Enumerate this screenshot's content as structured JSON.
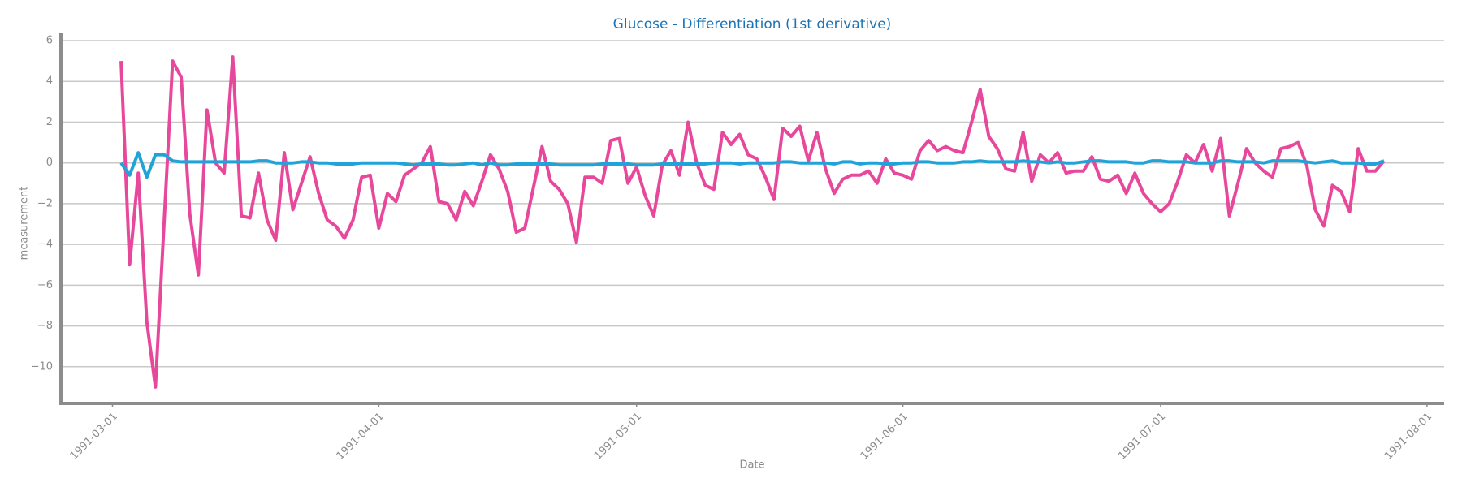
{
  "chart_data": {
    "type": "line",
    "title": "Glucose - Differentiation (1st derivative)",
    "x_label": "Date",
    "y_label": "measurement",
    "x": [
      "1991-03-02",
      "1991-03-03",
      "1991-03-04",
      "1991-03-05",
      "1991-03-06",
      "1991-03-07",
      "1991-03-08",
      "1991-03-09",
      "1991-03-10",
      "1991-03-11",
      "1991-03-12",
      "1991-03-13",
      "1991-03-14",
      "1991-03-15",
      "1991-03-16",
      "1991-03-17",
      "1991-03-18",
      "1991-03-19",
      "1991-03-20",
      "1991-03-21",
      "1991-03-22",
      "1991-03-23",
      "1991-03-24",
      "1991-03-25",
      "1991-03-26",
      "1991-03-27",
      "1991-03-28",
      "1991-03-29",
      "1991-03-30",
      "1991-03-31",
      "1991-04-01",
      "1991-04-02",
      "1991-04-03",
      "1991-04-04",
      "1991-04-05",
      "1991-04-06",
      "1991-04-07",
      "1991-04-08",
      "1991-04-09",
      "1991-04-10",
      "1991-04-11",
      "1991-04-12",
      "1991-04-13",
      "1991-04-14",
      "1991-04-15",
      "1991-04-16",
      "1991-04-17",
      "1991-04-18",
      "1991-04-19",
      "1991-04-20",
      "1991-04-21",
      "1991-04-22",
      "1991-04-23",
      "1991-04-24",
      "1991-04-25",
      "1991-04-26",
      "1991-04-27",
      "1991-04-28",
      "1991-04-29",
      "1991-04-30",
      "1991-05-01",
      "1991-05-02",
      "1991-05-03",
      "1991-05-04",
      "1991-05-05",
      "1991-05-06",
      "1991-05-07",
      "1991-05-08",
      "1991-05-09",
      "1991-05-10",
      "1991-05-11",
      "1991-05-12",
      "1991-05-13",
      "1991-05-14",
      "1991-05-15",
      "1991-05-16",
      "1991-05-17",
      "1991-05-18",
      "1991-05-19",
      "1991-05-20",
      "1991-05-21",
      "1991-05-22",
      "1991-05-23",
      "1991-05-24",
      "1991-05-25",
      "1991-05-26",
      "1991-05-27",
      "1991-05-28",
      "1991-05-29",
      "1991-05-30",
      "1991-05-31",
      "1991-06-01",
      "1991-06-02",
      "1991-06-03",
      "1991-06-04",
      "1991-06-05",
      "1991-06-06",
      "1991-06-07",
      "1991-06-08",
      "1991-06-09",
      "1991-06-10",
      "1991-06-11",
      "1991-06-12",
      "1991-06-13",
      "1991-06-14",
      "1991-06-15",
      "1991-06-16",
      "1991-06-17",
      "1991-06-18",
      "1991-06-19",
      "1991-06-20",
      "1991-06-21",
      "1991-06-22",
      "1991-06-23",
      "1991-06-24",
      "1991-06-25",
      "1991-06-26",
      "1991-06-27",
      "1991-06-28",
      "1991-06-29",
      "1991-06-30",
      "1991-07-01",
      "1991-07-02",
      "1991-07-03",
      "1991-07-04",
      "1991-07-05",
      "1991-07-06",
      "1991-07-07",
      "1991-07-08",
      "1991-07-09",
      "1991-07-10",
      "1991-07-11",
      "1991-07-12",
      "1991-07-13",
      "1991-07-14",
      "1991-07-15",
      "1991-07-16",
      "1991-07-17",
      "1991-07-18",
      "1991-07-19",
      "1991-07-20",
      "1991-07-21",
      "1991-07-22",
      "1991-07-23",
      "1991-07-24",
      "1991-07-25",
      "1991-07-26",
      "1991-07-27"
    ],
    "series": [
      {
        "color": "#1fa3d8",
        "values": [
          0.0,
          -0.6,
          0.5,
          -0.7,
          0.4,
          0.4,
          0.1,
          0.05,
          0.05,
          0.05,
          0.05,
          0.05,
          0.05,
          0.05,
          0.05,
          0.05,
          0.1,
          0.1,
          0.0,
          0.0,
          0.0,
          0.05,
          0.05,
          0.0,
          0.0,
          -0.05,
          -0.05,
          -0.05,
          0.0,
          0.0,
          0.0,
          0.0,
          0.0,
          -0.05,
          -0.1,
          -0.05,
          -0.05,
          -0.05,
          -0.1,
          -0.1,
          -0.05,
          0.0,
          -0.1,
          0.0,
          -0.1,
          -0.1,
          -0.05,
          -0.05,
          -0.05,
          -0.05,
          -0.05,
          -0.1,
          -0.1,
          -0.1,
          -0.1,
          -0.1,
          -0.05,
          -0.05,
          -0.05,
          -0.05,
          -0.1,
          -0.1,
          -0.1,
          -0.05,
          -0.05,
          -0.05,
          -0.05,
          -0.05,
          -0.05,
          0.0,
          0.0,
          0.0,
          -0.05,
          0.0,
          0.0,
          0.0,
          0.0,
          0.05,
          0.05,
          0.0,
          0.0,
          0.0,
          0.0,
          -0.05,
          0.05,
          0.05,
          -0.05,
          0.0,
          0.0,
          -0.05,
          -0.05,
          0.0,
          0.0,
          0.05,
          0.05,
          0.0,
          0.0,
          0.0,
          0.05,
          0.05,
          0.1,
          0.05,
          0.05,
          0.05,
          0.05,
          0.1,
          0.05,
          0.05,
          0.0,
          0.05,
          0.0,
          0.0,
          0.05,
          0.1,
          0.1,
          0.05,
          0.05,
          0.05,
          0.0,
          0.0,
          0.1,
          0.1,
          0.05,
          0.05,
          0.05,
          0.0,
          0.0,
          0.0,
          0.1,
          0.1,
          0.05,
          0.05,
          0.05,
          0.0,
          0.1,
          0.1,
          0.1,
          0.1,
          0.05,
          0.0,
          0.05,
          0.1,
          0.0,
          0.0,
          0.0,
          -0.05,
          -0.05,
          0.1
        ]
      },
      {
        "color": "#e8489b",
        "values": [
          5.0,
          -5.0,
          -0.5,
          -7.8,
          -11.0,
          -3.0,
          5.0,
          4.2,
          -2.5,
          -5.5,
          2.6,
          0.0,
          -0.5,
          5.2,
          -2.6,
          -2.7,
          -0.5,
          -2.8,
          -3.8,
          0.5,
          -2.3,
          -1.0,
          0.3,
          -1.5,
          -2.8,
          -3.1,
          -3.7,
          -2.8,
          -0.7,
          -0.6,
          -3.2,
          -1.5,
          -1.9,
          -0.6,
          -0.3,
          0.0,
          0.8,
          -1.9,
          -2.0,
          -2.8,
          -1.4,
          -2.1,
          -0.9,
          0.4,
          -0.3,
          -1.4,
          -3.4,
          -3.2,
          -1.2,
          0.8,
          -0.9,
          -1.3,
          -2.0,
          -3.9,
          -0.7,
          -0.7,
          -1.0,
          1.1,
          1.2,
          -1.0,
          -0.2,
          -1.6,
          -2.6,
          -0.1,
          0.6,
          -0.6,
          2.0,
          0.0,
          -1.1,
          -1.3,
          1.5,
          0.9,
          1.4,
          0.4,
          0.2,
          -0.7,
          -1.8,
          1.7,
          1.3,
          1.8,
          0.1,
          1.5,
          -0.3,
          -1.5,
          -0.8,
          -0.6,
          -0.6,
          -0.4,
          -1.0,
          0.2,
          -0.5,
          -0.6,
          -0.8,
          0.6,
          1.1,
          0.6,
          0.8,
          0.6,
          0.5,
          2.0,
          3.6,
          1.3,
          0.7,
          -0.3,
          -0.4,
          1.5,
          -0.9,
          0.4,
          0.0,
          0.5,
          -0.5,
          -0.4,
          -0.4,
          0.3,
          -0.8,
          -0.9,
          -0.6,
          -1.5,
          -0.5,
          -1.5,
          -2.0,
          -2.4,
          -2.0,
          -0.9,
          0.4,
          0.0,
          0.9,
          -0.4,
          1.2,
          -2.6,
          -1.0,
          0.7,
          0.0,
          -0.4,
          -0.7,
          0.7,
          0.8,
          1.0,
          -0.1,
          -2.3,
          -3.1,
          -1.1,
          -1.4,
          -2.4,
          0.7,
          -0.4,
          -0.4,
          0.1
        ]
      }
    ],
    "xlim": [
      "1991-02-23",
      "1991-08-03"
    ],
    "xticks": [
      "1991-03-01",
      "1991-04-01",
      "1991-05-01",
      "1991-06-01",
      "1991-07-01",
      "1991-08-01"
    ],
    "ylim": [
      -11.8,
      6.2
    ],
    "yticks": [
      {
        "value": -10,
        "label": "−10"
      },
      {
        "value": -8,
        "label": "−8"
      },
      {
        "value": -6,
        "label": "−6"
      },
      {
        "value": -4,
        "label": "−4"
      },
      {
        "value": -2,
        "label": "−2"
      },
      0,
      2,
      4,
      6
    ],
    "grid": true
  }
}
